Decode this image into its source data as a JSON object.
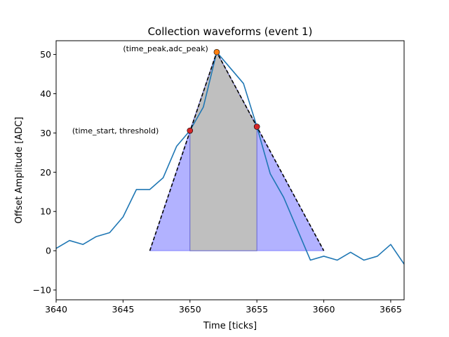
{
  "chart_data": {
    "type": "line",
    "title": "Collection waveforms (event 1)",
    "xlabel": "Time [ticks]",
    "ylabel": "Offset Amplitude [ADC]",
    "xlim": [
      3640,
      3666
    ],
    "ylim": [
      -12.5,
      53.5
    ],
    "xticks": [
      3640,
      3645,
      3650,
      3655,
      3660,
      3665
    ],
    "yticks": [
      -10,
      0,
      10,
      20,
      30,
      40,
      50
    ],
    "grid": false,
    "series": [
      {
        "color": "#1f77b4",
        "x": [
          3640,
          3641,
          3642,
          3643,
          3644,
          3645,
          3646,
          3647,
          3648,
          3649,
          3650,
          3651,
          3652,
          3653,
          3654,
          3655,
          3656,
          3657,
          3658,
          3659,
          3660,
          3661,
          3662,
          3663,
          3664,
          3665,
          3666
        ],
        "y": [
          0.6,
          2.6,
          1.6,
          3.6,
          4.6,
          8.6,
          15.6,
          15.6,
          18.6,
          26.6,
          30.6,
          36.6,
          50.6,
          46.6,
          42.6,
          31.6,
          19.6,
          13.6,
          5.6,
          -2.4,
          -1.4,
          -2.4,
          -0.4,
          -2.4,
          -1.4,
          1.6,
          -3.4
        ]
      }
    ],
    "fill_outer": {
      "color": "#0000ff",
      "alpha": 0.3,
      "x": [
        3647,
        3650,
        3652,
        3655,
        3660
      ],
      "y": [
        0,
        30.6,
        50.6,
        31.6,
        0
      ]
    },
    "fill_inner": {
      "color": "#bfbfbf",
      "x": [
        3650,
        3652,
        3655
      ],
      "y": [
        30.6,
        50.6,
        31.6
      ]
    },
    "dashed_triangle": {
      "color": "#000000",
      "x": [
        3647,
        3652,
        3660
      ],
      "y": [
        0,
        50.6,
        0
      ]
    },
    "markers": [
      {
        "x": 3652,
        "y": 50.6,
        "color": "#ff7f0e"
      },
      {
        "x": 3650,
        "y": 30.6,
        "color": "#d62728"
      },
      {
        "x": 3655,
        "y": 31.6,
        "color": "#d62728"
      }
    ],
    "annotations": [
      {
        "text": "(time_peak,adc_peak)",
        "x": 3645,
        "y": 51.5
      },
      {
        "text": "(time_start, threshold)",
        "x": 3641.2,
        "y": 30.6
      }
    ]
  }
}
